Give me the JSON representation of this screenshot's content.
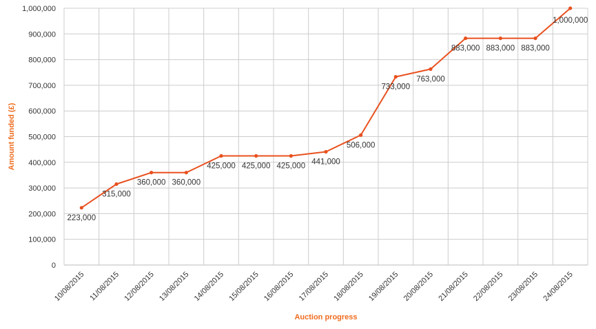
{
  "chart_data": {
    "type": "line",
    "title": "",
    "xlabel": "Auction progress",
    "ylabel": "Amount funded (£)",
    "ylim": [
      0,
      1000000
    ],
    "yticks": [
      "0",
      "100,000",
      "200,000",
      "300,000",
      "400,000",
      "500,000",
      "600,000",
      "700,000",
      "800,000",
      "900,000",
      "1,000,000"
    ],
    "categories": [
      "10/08/2015",
      "11/08/2015",
      "12/08/2015",
      "13/08/2015",
      "14/08/2015",
      "15/08/2015",
      "16/08/2015",
      "17/08/2015",
      "18/08/2015",
      "19/08/2015",
      "20/08/2015",
      "21/08/2015",
      "22/08/2015",
      "23/08/2015",
      "24/08/2015"
    ],
    "values": [
      223000,
      315000,
      360000,
      360000,
      425000,
      425000,
      425000,
      441000,
      506000,
      733000,
      763000,
      883000,
      883000,
      883000,
      1000000
    ],
    "data_labels": [
      "223,000",
      "315,000",
      "360,000",
      "360,000",
      "425,000",
      "425,000",
      "425,000",
      "441,000",
      "506,000",
      "733,000",
      "763,000",
      "883,000",
      "883,000",
      "883,000",
      "1,000,000"
    ],
    "grid": true,
    "legend": "none",
    "colors": {
      "line": "#e8501e",
      "axis_title": "#ef6c1f",
      "grid": "#cccccc"
    }
  }
}
